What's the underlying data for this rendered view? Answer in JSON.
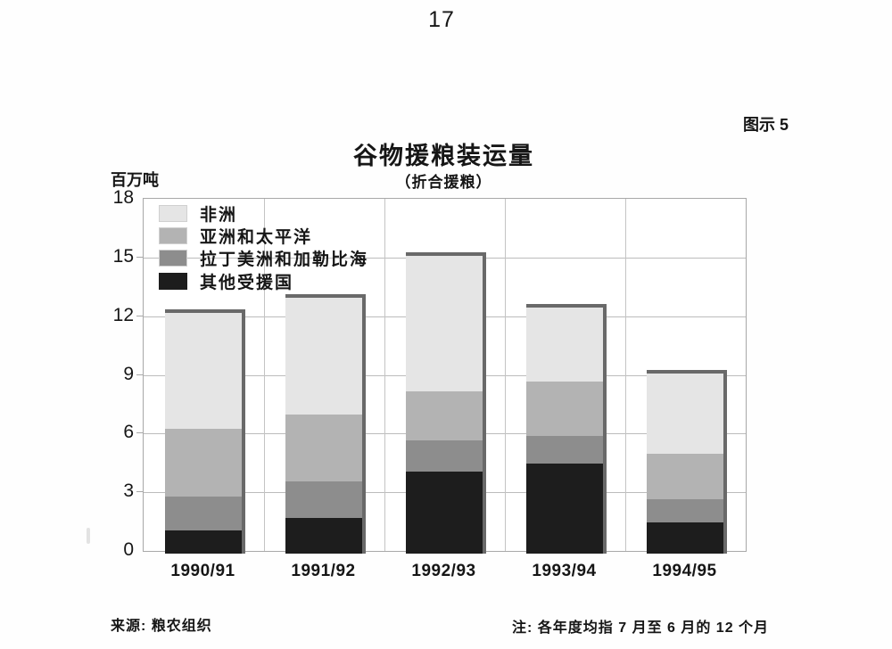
{
  "page": {
    "number": "17",
    "figure_label": "图示 5"
  },
  "chart": {
    "title": "谷物援粮装运量",
    "subtitle": "（折合援粮）",
    "y_axis_unit": "百万吨",
    "source": "来源:  粮农组织",
    "note": "注:  各年度均指 7 月至 6 月的 12 个月"
  },
  "chart_data": {
    "type": "bar",
    "stacked": true,
    "title": "谷物援粮装运量",
    "subtitle": "（折合援粮）",
    "ylabel": "百万吨",
    "xlabel": "",
    "ylim": [
      0,
      18
    ],
    "yticks": [
      0,
      3,
      6,
      9,
      12,
      15,
      18
    ],
    "grid": true,
    "legend_position": "upper-left-inside",
    "legend_order_top_to_bottom": [
      "非洲",
      "亚洲和太平洋",
      "拉丁美洲和加勒比海",
      "其他受援国"
    ],
    "categories": [
      "1990/91",
      "1991/92",
      "1992/93",
      "1993/94",
      "1994/95"
    ],
    "stack_order_bottom_to_top": [
      "其他受援国",
      "拉丁美洲和加勒比海",
      "亚洲和太平洋",
      "非洲"
    ],
    "series": [
      {
        "name": "其他受援国",
        "color": "#1d1d1d",
        "values": [
          1.2,
          1.8,
          4.2,
          4.6,
          1.6
        ]
      },
      {
        "name": "拉丁美洲和加勒比海",
        "color": "#8d8d8d",
        "values": [
          1.7,
          1.9,
          1.6,
          1.4,
          1.2
        ]
      },
      {
        "name": "亚洲和太平洋",
        "color": "#b3b3b3",
        "values": [
          3.5,
          3.4,
          2.5,
          2.8,
          2.3
        ]
      },
      {
        "name": "非洲",
        "color": "#e5e5e5",
        "values": [
          5.9,
          6.0,
          6.9,
          3.8,
          4.1
        ]
      }
    ],
    "totals": [
      12.3,
      13.1,
      15.2,
      12.6,
      9.2
    ]
  },
  "colors": {
    "bar_outline_shadow": "#696969",
    "gridline": "#bcbcbc",
    "frame": "#a8a8a8",
    "text": "#161616"
  }
}
